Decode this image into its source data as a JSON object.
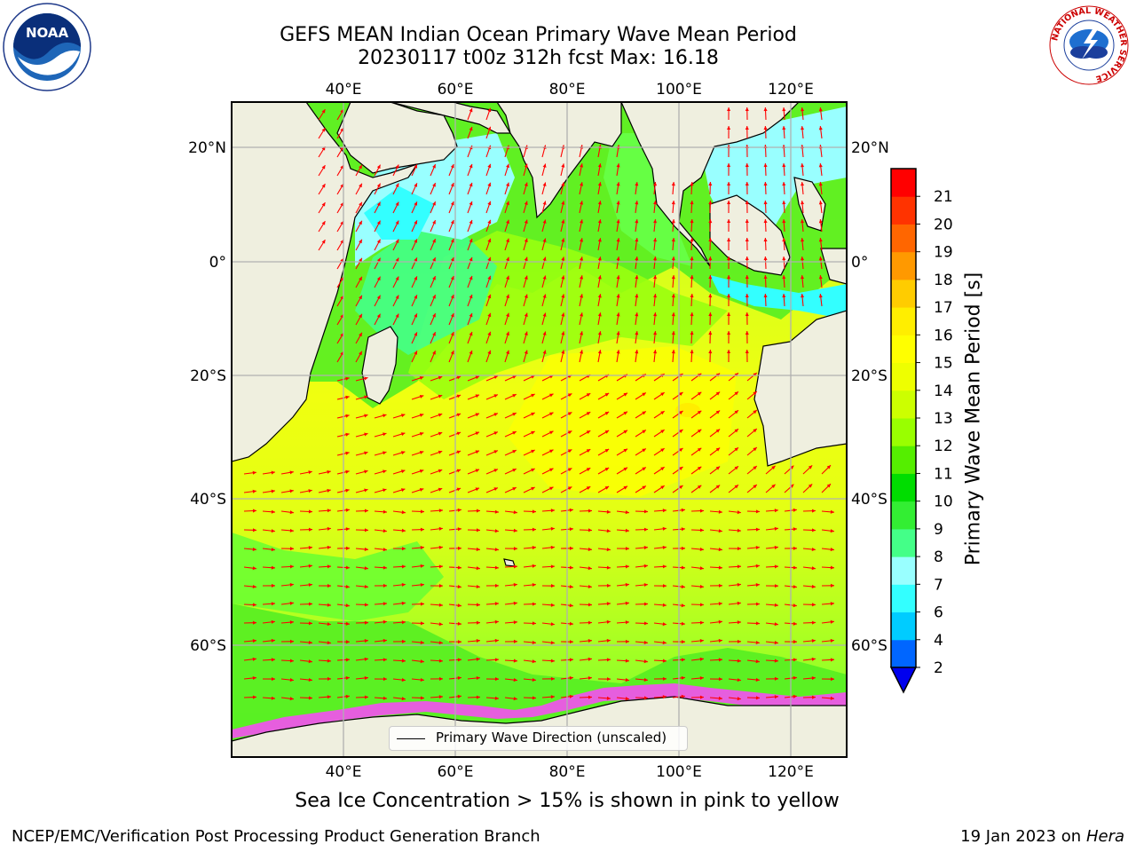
{
  "header": {
    "title_line1": "GEFS MEAN Indian Ocean Primary Wave Mean Period",
    "title_line2": "20230117 t00z 312h fcst   Max: 16.18"
  },
  "logos": {
    "noaa": {
      "text": "NOAA",
      "ring_text": "NATIONAL OCEANIC AND ATMOSPHERIC ADMINISTRATION · U.S. DEPARTMENT OF COMMERCE"
    },
    "nws": {
      "ring_text": "NATIONAL WEATHER SERVICE"
    }
  },
  "map": {
    "lon_labels": [
      "40°E",
      "60°E",
      "80°E",
      "100°E",
      "120°E"
    ],
    "lat_labels": [
      "20°N",
      "0°",
      "20°S",
      "40°S",
      "60°S"
    ],
    "legend_label": "Primary Wave Direction (unscaled)",
    "land_color": "#efefdf",
    "arrow_color": "#ff0000"
  },
  "colorbar": {
    "title": "Primary Wave Mean Period [s]",
    "ticks": [
      "2",
      "4",
      "6",
      "7",
      "8",
      "9",
      "10",
      "11",
      "12",
      "13",
      "14",
      "15",
      "16",
      "17",
      "18",
      "19",
      "20",
      "21"
    ],
    "colors": [
      "#0066ff",
      "#00ccff",
      "#33ffff",
      "#99ffff",
      "#44ff88",
      "#33ee33",
      "#00dd00",
      "#55ee00",
      "#99ff00",
      "#ccff00",
      "#eeff00",
      "#ffff00",
      "#ffee00",
      "#ffcc00",
      "#ff9900",
      "#ff6600",
      "#ff3300",
      "#ff0000"
    ],
    "under_color": "#0000ee"
  },
  "footer": {
    "ice_note": "Sea Ice Concentration > 15% is shown in pink to yellow",
    "left": "NCEP/EMC/Verification Post Processing Product Generation Branch",
    "right_date": "19 Jan 2023 on",
    "right_host": "Hera"
  }
}
